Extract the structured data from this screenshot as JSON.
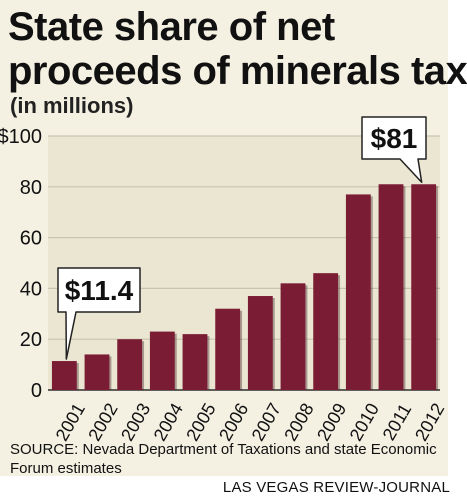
{
  "header": {
    "title_line1": "State share of net",
    "title_line2": "proceeds of minerals tax",
    "subtitle": "(in millions)"
  },
  "chart_data": {
    "type": "bar",
    "categories": [
      "2001",
      "2002",
      "2003",
      "2004",
      "2005",
      "2006",
      "2007",
      "2008",
      "2009",
      "2010",
      "2011",
      "2012"
    ],
    "values": [
      11.4,
      14,
      20,
      23,
      22,
      32,
      37,
      42,
      46,
      77,
      81,
      81
    ],
    "ylim": [
      0,
      100
    ],
    "yticks": [
      0,
      20,
      40,
      60,
      80,
      100
    ],
    "ytick_labels": [
      "0",
      "20",
      "40",
      "60",
      "80",
      "$100"
    ],
    "grid": true,
    "annotations": [
      {
        "category": "2001",
        "text": "$11.4"
      },
      {
        "category": "2012",
        "text": "$81"
      }
    ],
    "colors": {
      "bar": "#7b1c35",
      "background": "#f4f1e3",
      "grid": "#c9c4ae"
    }
  },
  "footer": {
    "source": "SOURCE: Nevada Department of Taxations and state Economic Forum estimates",
    "credit": "LAS VEGAS REVIEW-JOURNAL"
  }
}
